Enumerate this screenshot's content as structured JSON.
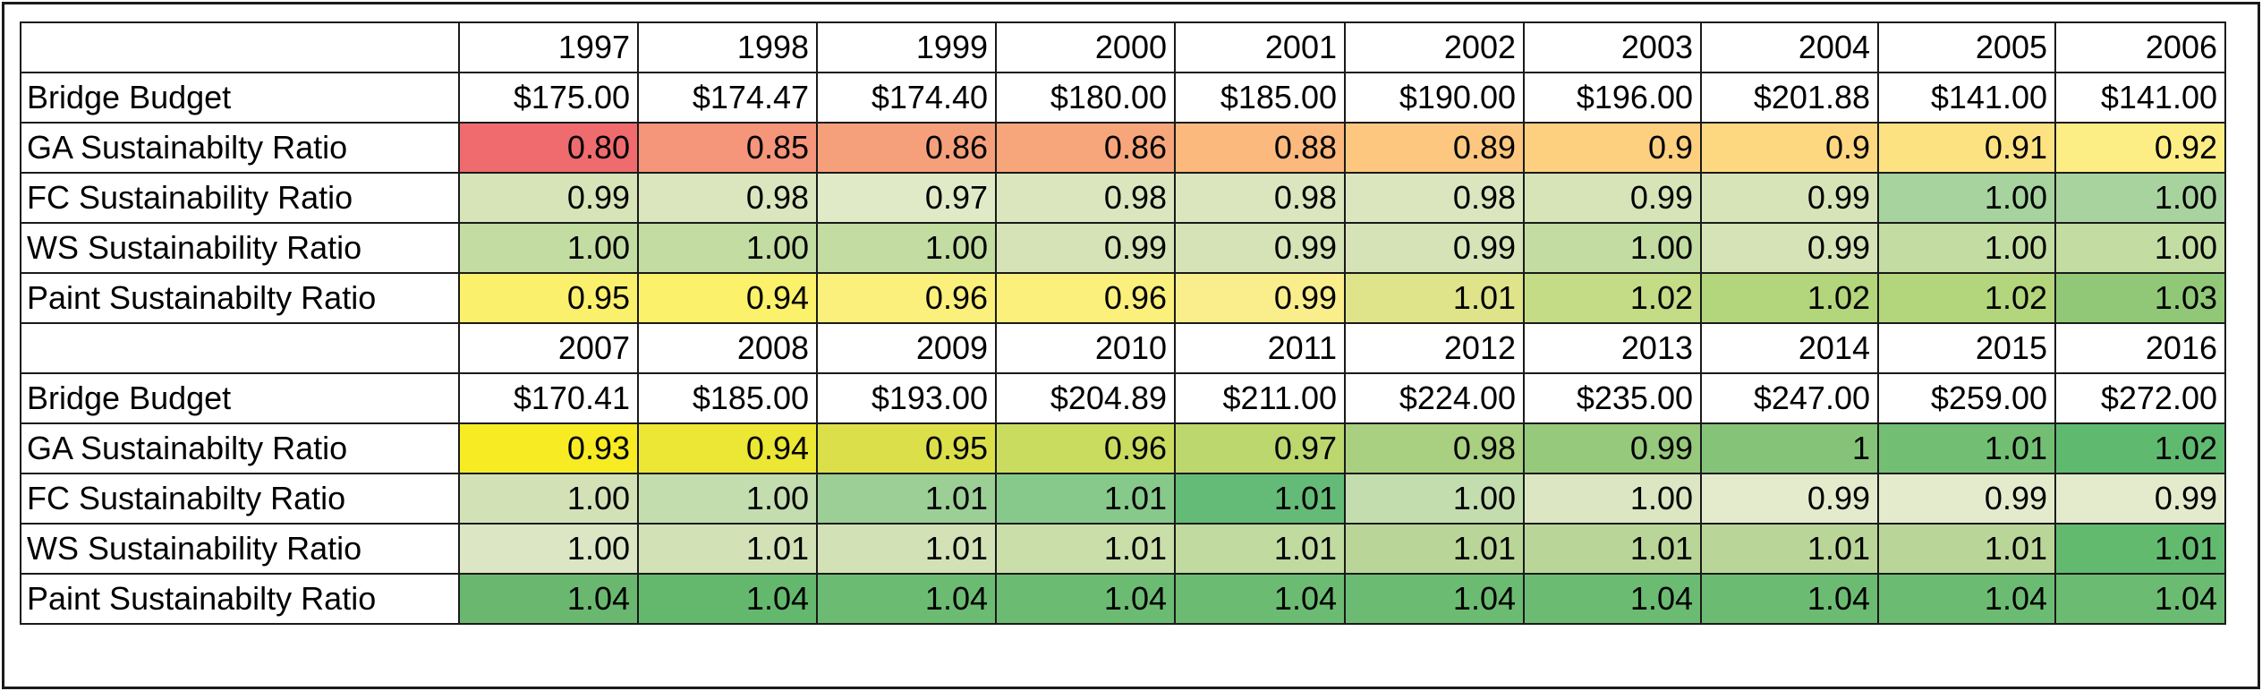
{
  "table": {
    "columns": 10,
    "rows": [
      {
        "label": "",
        "cells": [
          "1997",
          "1998",
          "1999",
          "2000",
          "2001",
          "2002",
          "2003",
          "2004",
          "2005",
          "2006"
        ],
        "colors": []
      },
      {
        "label": "Bridge Budget",
        "cells": [
          "$175.00",
          "$174.47",
          "$174.40",
          "$180.00",
          "$185.00",
          "$190.00",
          "$196.00",
          "$201.88",
          "$141.00",
          "$141.00"
        ],
        "colors": []
      },
      {
        "label": "GA Sustainabilty Ratio",
        "cells": [
          "0.80",
          "0.85",
          "0.86",
          "0.86",
          "0.88",
          "0.89",
          "0.9",
          "0.9",
          "0.91",
          "0.92"
        ],
        "colors": [
          "#ef6b6e",
          "#f59579",
          "#f6a07b",
          "#f7a67b",
          "#fbb97d",
          "#fdc77f",
          "#fdd080",
          "#fed881",
          "#fde282",
          "#fcee84"
        ]
      },
      {
        "label": "FC Sustainability Ratio",
        "cells": [
          "0.99",
          "0.98",
          "0.97",
          "0.98",
          "0.98",
          "0.98",
          "0.99",
          "0.99",
          "1.00",
          "1.00"
        ],
        "colors": [
          "#d7e4b8",
          "#dbe6bf",
          "#e1eac7",
          "#dbe6bf",
          "#dbe6bf",
          "#dbe6bf",
          "#d7e4b8",
          "#d7e4b8",
          "#a6d39e",
          "#a8d39f"
        ]
      },
      {
        "label": "WS Sustainability Ratio",
        "cells": [
          "1.00",
          "1.00",
          "1.00",
          "0.99",
          "0.99",
          "0.99",
          "1.00",
          "0.99",
          "1.00",
          "1.00"
        ],
        "colors": [
          "#c2dca2",
          "#c2dca2",
          "#c2dca2",
          "#d6e3b7",
          "#d6e3b7",
          "#d6e3b7",
          "#c2dca2",
          "#d6e3b7",
          "#c2dca2",
          "#c2dca2"
        ]
      },
      {
        "label": "Paint Sustainabilty Ratio",
        "cells": [
          "0.95",
          "0.94",
          "0.96",
          "0.96",
          "0.99",
          "1.01",
          "1.02",
          "1.02",
          "1.02",
          "1.03"
        ],
        "colors": [
          "#fbf06c",
          "#fbf16b",
          "#fbf07b",
          "#fbf07b",
          "#faee8c",
          "#dfe38a",
          "#c4dc85",
          "#b3d57c",
          "#b3d57c",
          "#90c878"
        ]
      },
      {
        "label": "",
        "cells": [
          "2007",
          "2008",
          "2009",
          "2010",
          "2011",
          "2012",
          "2013",
          "2014",
          "2015",
          "2016"
        ],
        "colors": []
      },
      {
        "label": "Bridge Budget",
        "cells": [
          "$170.41",
          "$185.00",
          "$193.00",
          "$204.89",
          "$211.00",
          "$224.00",
          "$235.00",
          "$247.00",
          "$259.00",
          "$272.00"
        ],
        "colors": []
      },
      {
        "label": "GA Sustainabilty Ratio",
        "cells": [
          "0.93",
          "0.94",
          "0.95",
          "0.96",
          "0.97",
          "0.98",
          "0.99",
          "1",
          "1.01",
          "1.02"
        ],
        "colors": [
          "#f7eb24",
          "#ece634",
          "#dbe04a",
          "#cadc5f",
          "#bcd76e",
          "#a9cf80",
          "#97c97d",
          "#85c478",
          "#72bf73",
          "#5fba70"
        ]
      },
      {
        "label": "FC Sustainabilty Ratio",
        "cells": [
          "1.00",
          "1.00",
          "1.01",
          "1.01",
          "1.01",
          "1.00",
          "1.00",
          "0.99",
          "0.99",
          "0.99"
        ],
        "colors": [
          "#d2e2b6",
          "#c4ddae",
          "#9ccf95",
          "#87c98a",
          "#64bb77",
          "#c4ddae",
          "#dce6c2",
          "#e3ebcc",
          "#e3ebcc",
          "#e3ebcc"
        ]
      },
      {
        "label": "WS Sustainability Ratio",
        "cells": [
          "1.00",
          "1.01",
          "1.01",
          "1.01",
          "1.01",
          "1.01",
          "1.01",
          "1.01",
          "1.01",
          "1.01"
        ],
        "colors": [
          "#dce6c4",
          "#d2e2b6",
          "#d2e2b6",
          "#c9dea9",
          "#c0da9f",
          "#b9d698",
          "#b9d698",
          "#b9d698",
          "#b9d698",
          "#62ba6f"
        ]
      },
      {
        "label": "Paint Sustainabilty Ratio",
        "cells": [
          "1.04",
          "1.04",
          "1.04",
          "1.04",
          "1.04",
          "1.04",
          "1.04",
          "1.04",
          "1.04",
          "1.04"
        ],
        "colors": [
          "#6ab870",
          "#64b86e",
          "#6cbb72",
          "#6cbb72",
          "#6cbb72",
          "#6cbb72",
          "#6cbb72",
          "#6cbb72",
          "#6cbb72",
          "#6cbb72"
        ]
      }
    ]
  }
}
